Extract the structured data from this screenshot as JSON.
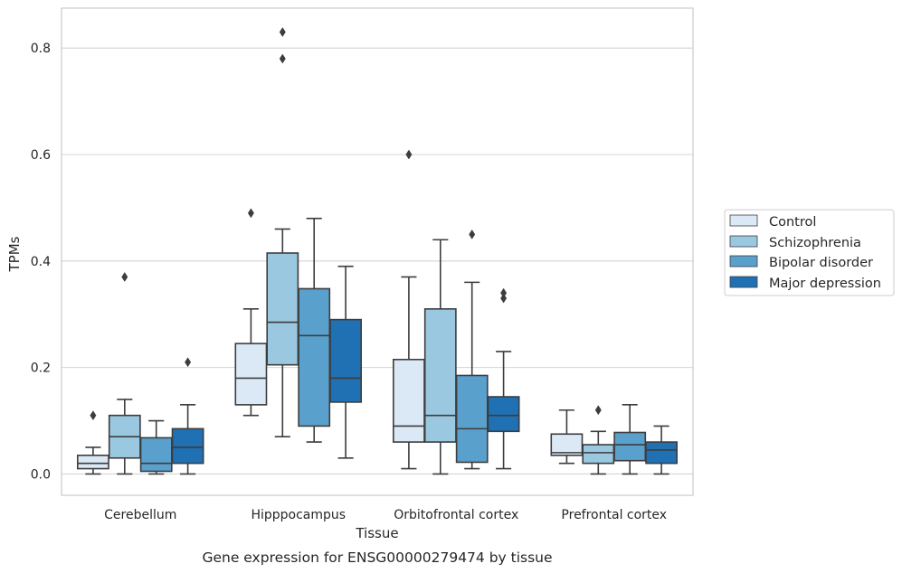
{
  "chart_data": {
    "type": "boxplot",
    "caption": "Gene expression for ENSG00000279474 by tissue",
    "xlabel": "Tissue",
    "ylabel": "TPMs",
    "ylim": [
      -0.04,
      0.875
    ],
    "yticks": [
      0.0,
      0.2,
      0.4,
      0.6,
      0.8
    ],
    "ytick_labels": [
      "0.0",
      "0.2",
      "0.4",
      "0.6",
      "0.8"
    ],
    "grid": "horizontal",
    "legend_position": "right",
    "categories": [
      "Cerebellum",
      "Hipppocampus",
      "Orbitofrontal cortex",
      "Prefrontal cortex"
    ],
    "series": [
      {
        "name": "Control",
        "color": "#dbe9f6",
        "boxes": [
          {
            "whislo": 0.0,
            "q1": 0.01,
            "med": 0.02,
            "q3": 0.035,
            "whishi": 0.05,
            "fliers": [
              0.11
            ]
          },
          {
            "whislo": 0.11,
            "q1": 0.13,
            "med": 0.18,
            "q3": 0.245,
            "whishi": 0.31,
            "fliers": [
              0.49
            ]
          },
          {
            "whislo": 0.01,
            "q1": 0.06,
            "med": 0.09,
            "q3": 0.215,
            "whishi": 0.37,
            "fliers": [
              0.6
            ]
          },
          {
            "whislo": 0.02,
            "q1": 0.035,
            "med": 0.04,
            "q3": 0.075,
            "whishi": 0.12,
            "fliers": []
          }
        ]
      },
      {
        "name": "Schizophrenia",
        "color": "#9ac8e0",
        "boxes": [
          {
            "whislo": 0.0,
            "q1": 0.03,
            "med": 0.07,
            "q3": 0.11,
            "whishi": 0.14,
            "fliers": [
              0.37
            ]
          },
          {
            "whislo": 0.07,
            "q1": 0.205,
            "med": 0.285,
            "q3": 0.415,
            "whishi": 0.46,
            "fliers": [
              0.78,
              0.83
            ]
          },
          {
            "whislo": 0.0,
            "q1": 0.06,
            "med": 0.11,
            "q3": 0.31,
            "whishi": 0.44,
            "fliers": []
          },
          {
            "whislo": 0.0,
            "q1": 0.02,
            "med": 0.04,
            "q3": 0.055,
            "whishi": 0.08,
            "fliers": [
              0.12
            ]
          }
        ]
      },
      {
        "name": "Bipolar disorder",
        "color": "#5aa0cd",
        "boxes": [
          {
            "whislo": 0.0,
            "q1": 0.005,
            "med": 0.02,
            "q3": 0.068,
            "whishi": 0.1,
            "fliers": []
          },
          {
            "whislo": 0.06,
            "q1": 0.09,
            "med": 0.26,
            "q3": 0.348,
            "whishi": 0.48,
            "fliers": []
          },
          {
            "whislo": 0.01,
            "q1": 0.022,
            "med": 0.085,
            "q3": 0.185,
            "whishi": 0.36,
            "fliers": [
              0.45
            ]
          },
          {
            "whislo": 0.0,
            "q1": 0.025,
            "med": 0.055,
            "q3": 0.078,
            "whishi": 0.13,
            "fliers": []
          }
        ]
      },
      {
        "name": "Major depression",
        "color": "#2070b4",
        "boxes": [
          {
            "whislo": 0.0,
            "q1": 0.02,
            "med": 0.05,
            "q3": 0.085,
            "whishi": 0.13,
            "fliers": [
              0.21
            ]
          },
          {
            "whislo": 0.03,
            "q1": 0.135,
            "med": 0.18,
            "q3": 0.29,
            "whishi": 0.39,
            "fliers": []
          },
          {
            "whislo": 0.01,
            "q1": 0.08,
            "med": 0.11,
            "q3": 0.145,
            "whishi": 0.23,
            "fliers": [
              0.33,
              0.34
            ]
          },
          {
            "whislo": 0.0,
            "q1": 0.02,
            "med": 0.045,
            "q3": 0.06,
            "whishi": 0.09,
            "fliers": []
          }
        ]
      }
    ]
  }
}
